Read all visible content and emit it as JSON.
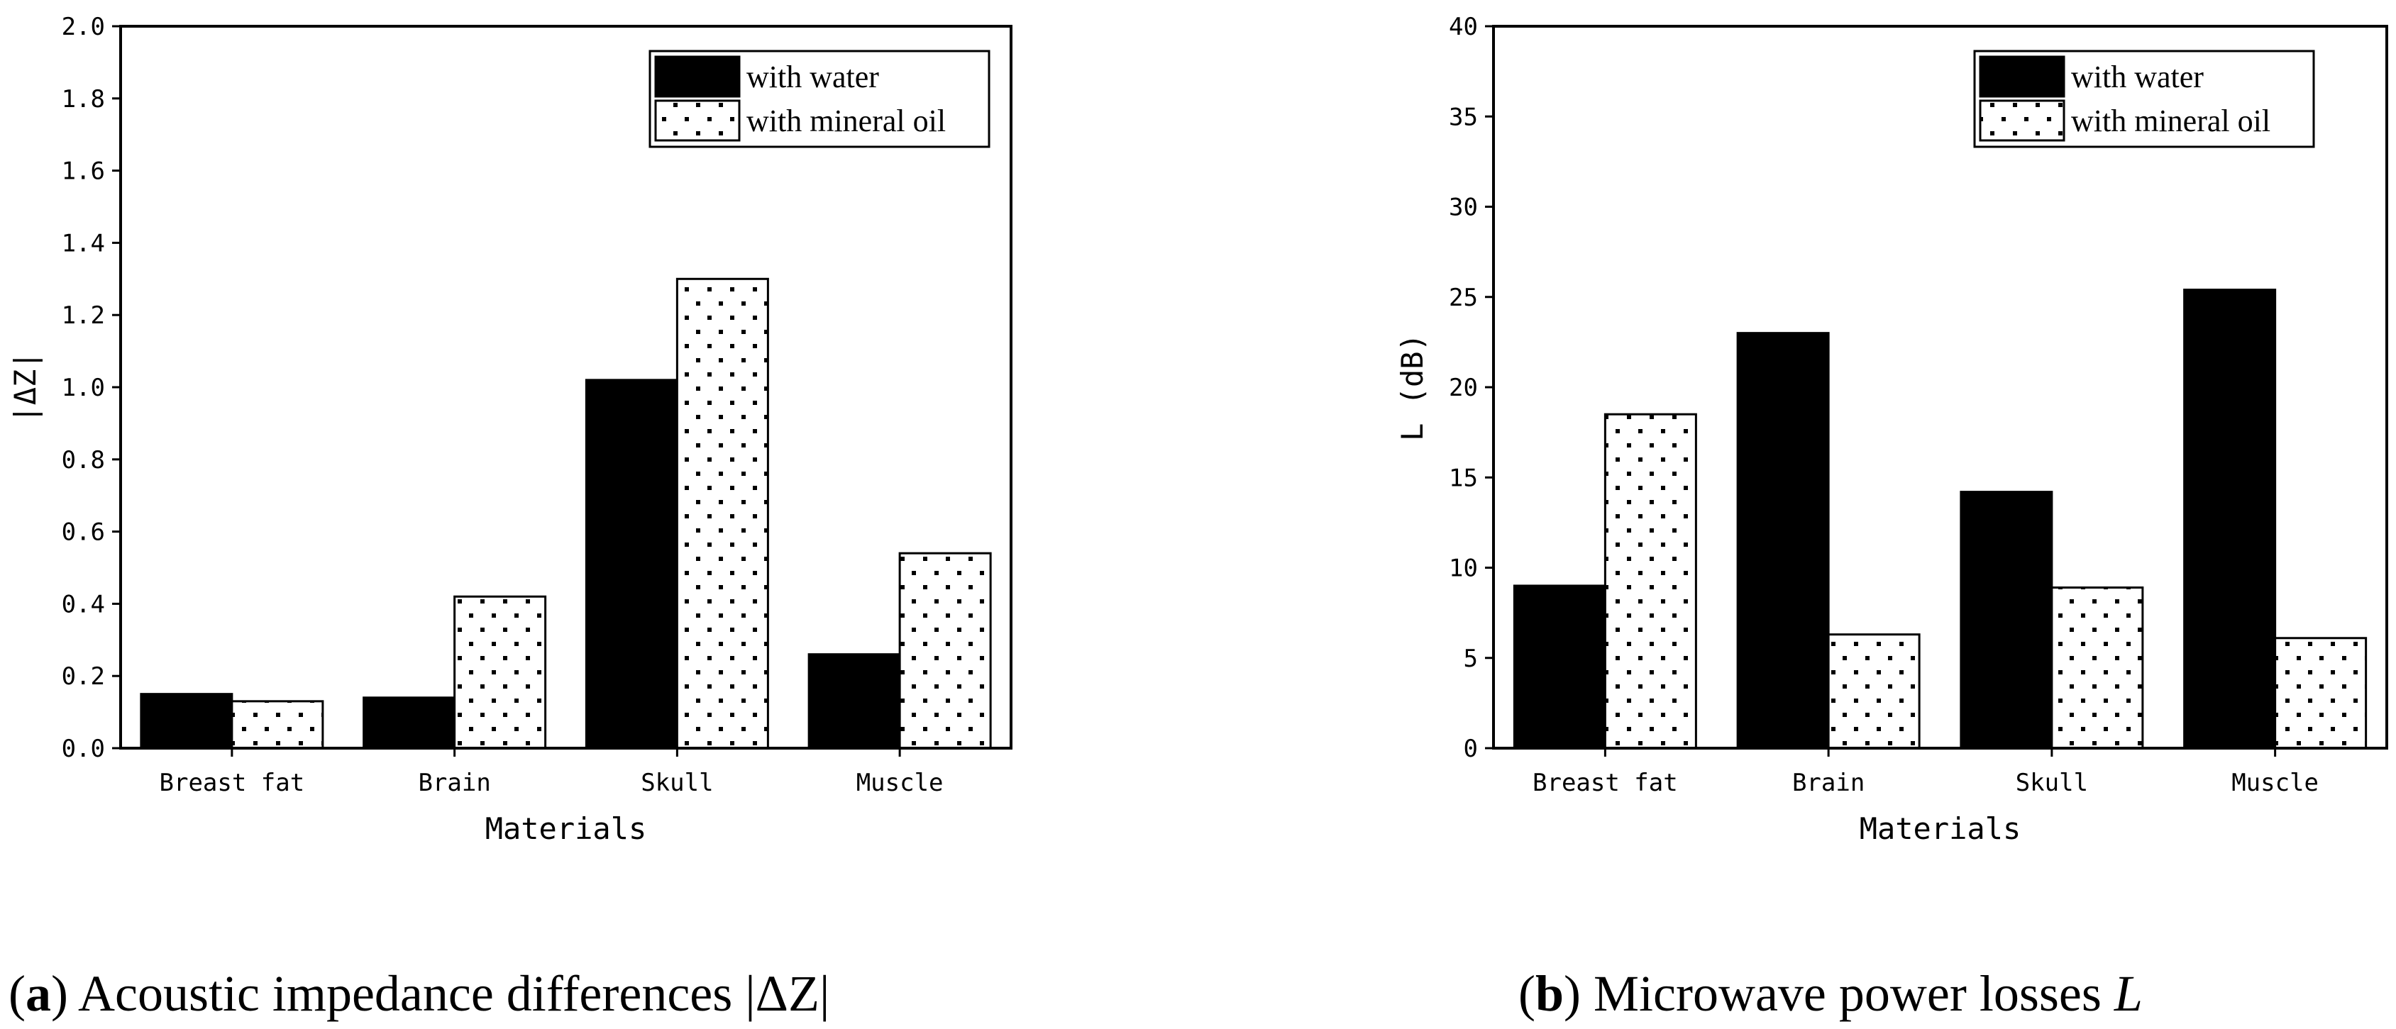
{
  "chart_data": [
    {
      "type": "bar",
      "categories": [
        "Breast fat",
        "Brain",
        "Skull",
        "Muscle"
      ],
      "series": [
        {
          "name": "with water",
          "values": [
            0.15,
            0.14,
            1.02,
            0.26
          ]
        },
        {
          "name": "with mineral oil",
          "values": [
            0.13,
            0.42,
            1.3,
            0.54
          ]
        }
      ],
      "xlabel": "Materials",
      "ylabel": "|ΔZ|",
      "ylim": [
        0,
        2.0
      ],
      "yticks": [
        "0.0",
        "0.2",
        "0.4",
        "0.6",
        "0.8",
        "1.0",
        "1.2",
        "1.4",
        "1.6",
        "1.8",
        "2.0"
      ],
      "legend": "top-right",
      "caption_letter": "a",
      "caption_text": " Acoustic impedance differences |ΔZ|"
    },
    {
      "type": "bar",
      "categories": [
        "Breast fat",
        "Brain",
        "Skull",
        "Muscle"
      ],
      "series": [
        {
          "name": "with water",
          "values": [
            9.0,
            23.0,
            14.2,
            25.4
          ]
        },
        {
          "name": "with mineral oil",
          "values": [
            18.5,
            6.3,
            8.9,
            6.1
          ]
        }
      ],
      "xlabel": "Materials",
      "ylabel": "L (dB)",
      "ylim": [
        0,
        40
      ],
      "yticks": [
        "0",
        "5",
        "10",
        "15",
        "20",
        "25",
        "30",
        "35",
        "40"
      ],
      "legend": "top-right",
      "caption_letter": "b",
      "caption_text": " Microwave power losses ",
      "caption_italic": "L"
    }
  ],
  "colors": {
    "series_water": "#000000",
    "series_oil_background": "#ffffff",
    "series_oil_dots": "#000000",
    "axis": "#000000"
  }
}
